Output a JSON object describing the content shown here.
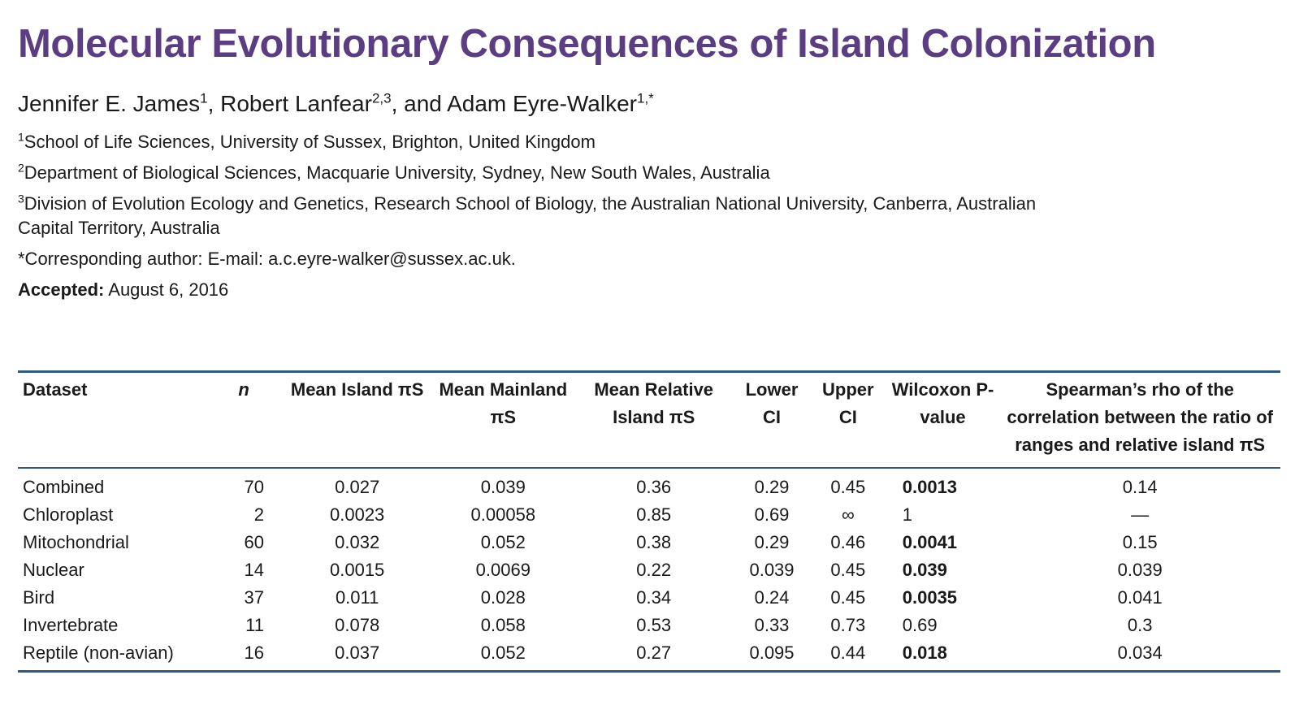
{
  "paper": {
    "title": "Molecular Evolutionary Consequences of Island Colonization",
    "authors": [
      {
        "name": "Jennifer E. James",
        "sup": "1",
        "sep": ", "
      },
      {
        "name": "Robert Lanfear",
        "sup": "2,3",
        "sep": ", and "
      },
      {
        "name": "Adam Eyre-Walker",
        "sup": "1,*",
        "sep": ""
      }
    ],
    "affiliations": [
      {
        "sup": "1",
        "text": "School of Life Sciences, University of Sussex, Brighton, United Kingdom"
      },
      {
        "sup": "2",
        "text": "Department of Biological Sciences, Macquarie University, Sydney, New South Wales, Australia"
      },
      {
        "sup": "3",
        "text": "Division of Evolution Ecology and Genetics, Research School of Biology, the Australian National University, Canberra, Australian Capital Territory, Australia"
      }
    ],
    "corresponding": "*Corresponding author: E-mail: a.c.eyre-walker@sussex.ac.uk.",
    "accepted_label": "Accepted:",
    "accepted_date": "August 6, 2016"
  },
  "table": {
    "headers": [
      "Dataset",
      "n",
      "Mean Island πS",
      "Mean Mainland πS",
      "Mean Relative Island πS",
      "Lower CI",
      "Upper CI",
      "Wilcoxon P-value",
      "Spearman’s rho of the correlation between the ratio of ranges and relative island πS"
    ],
    "rows": [
      {
        "dataset": "Combined",
        "n": "70",
        "mean_island": "0.027",
        "mean_mainland": "0.039",
        "mean_relative": "0.36",
        "lower_ci": "0.29",
        "upper_ci": "0.45",
        "wilcoxon": "0.0013",
        "wilcoxon_bold": true,
        "spearman": "0.14"
      },
      {
        "dataset": "Chloroplast",
        "n": "2",
        "mean_island": "0.0023",
        "mean_mainland": "0.00058",
        "mean_relative": "0.85",
        "lower_ci": "0.69",
        "upper_ci": "∞",
        "wilcoxon": "1",
        "wilcoxon_bold": false,
        "spearman": "—"
      },
      {
        "dataset": "Mitochondrial",
        "n": "60",
        "mean_island": "0.032",
        "mean_mainland": "0.052",
        "mean_relative": "0.38",
        "lower_ci": "0.29",
        "upper_ci": "0.46",
        "wilcoxon": "0.0041",
        "wilcoxon_bold": true,
        "spearman": "0.15"
      },
      {
        "dataset": "Nuclear",
        "n": "14",
        "mean_island": "0.0015",
        "mean_mainland": "0.0069",
        "mean_relative": "0.22",
        "lower_ci": "0.039",
        "upper_ci": "0.45",
        "wilcoxon": "0.039",
        "wilcoxon_bold": true,
        "spearman": "0.039"
      },
      {
        "dataset": "Bird",
        "n": "37",
        "mean_island": "0.011",
        "mean_mainland": "0.028",
        "mean_relative": "0.34",
        "lower_ci": "0.24",
        "upper_ci": "0.45",
        "wilcoxon": "0.0035",
        "wilcoxon_bold": true,
        "spearman": "0.041"
      },
      {
        "dataset": "Invertebrate",
        "n": "11",
        "mean_island": "0.078",
        "mean_mainland": "0.058",
        "mean_relative": "0.53",
        "lower_ci": "0.33",
        "upper_ci": "0.73",
        "wilcoxon": "0.69",
        "wilcoxon_bold": false,
        "spearman": "0.3"
      },
      {
        "dataset": "Reptile (non-avian)",
        "n": "16",
        "mean_island": "0.037",
        "mean_mainland": "0.052",
        "mean_relative": "0.27",
        "lower_ci": "0.095",
        "upper_ci": "0.44",
        "wilcoxon": "0.018",
        "wilcoxon_bold": true,
        "spearman": "0.034"
      }
    ]
  },
  "colors": {
    "title": "#5b3e82",
    "rule": "#2f5a84"
  }
}
